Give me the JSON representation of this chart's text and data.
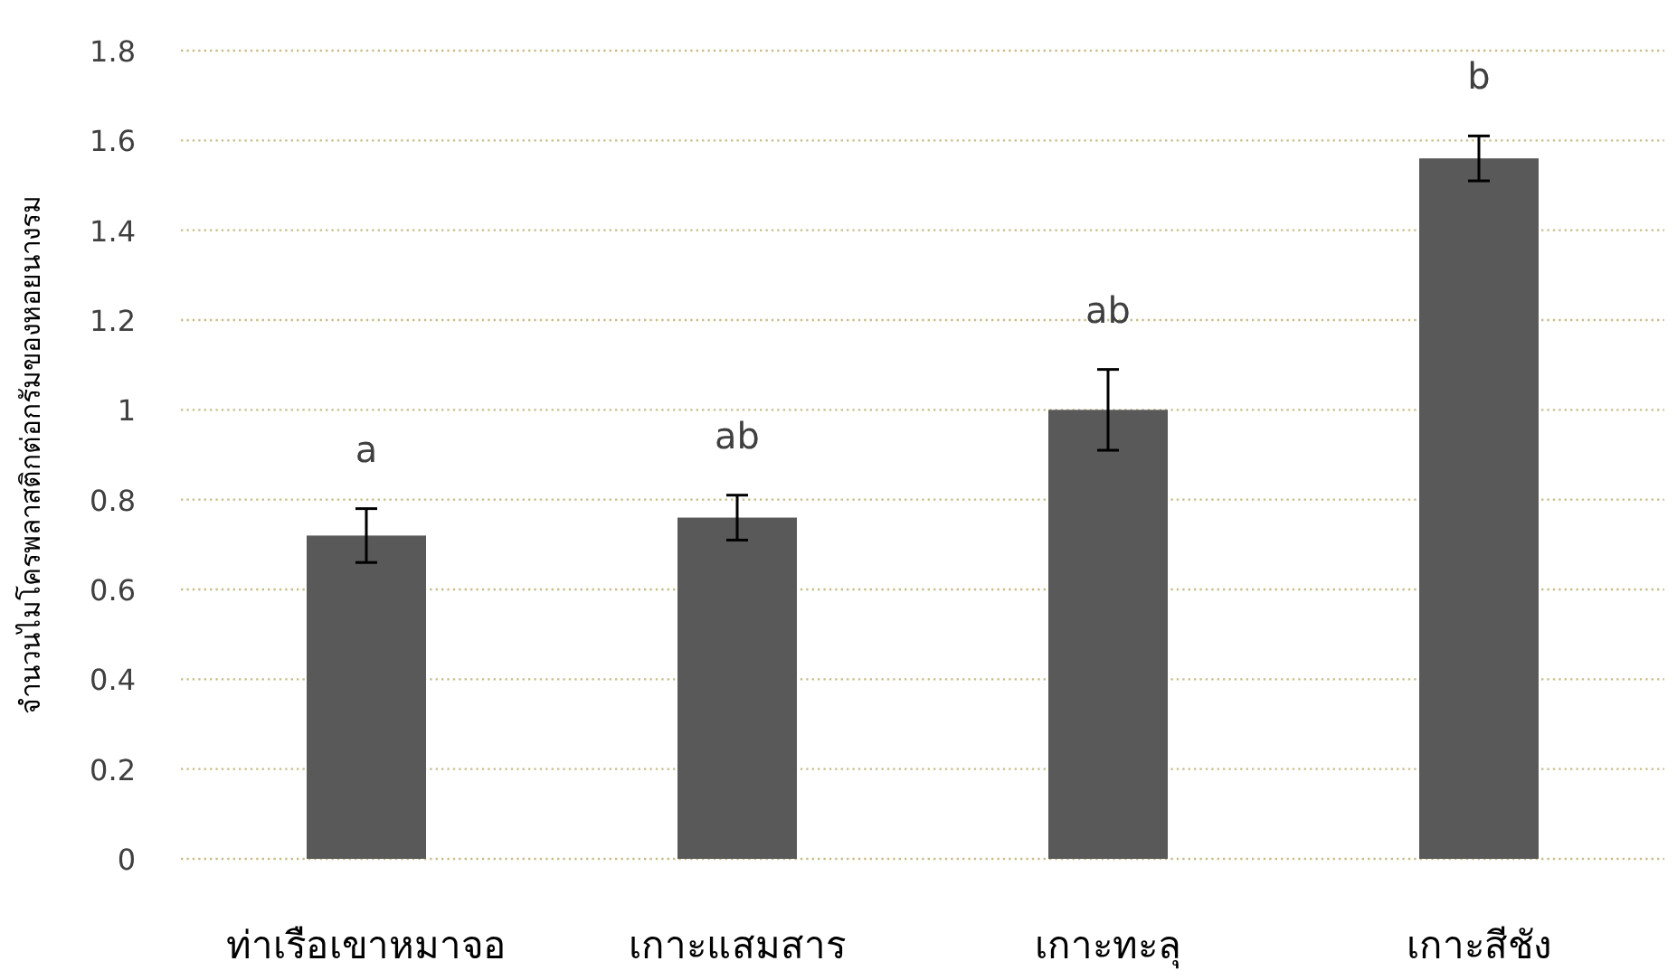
{
  "chart_data": {
    "type": "bar",
    "categories": [
      "ท่าเรือเขาหมาจอ",
      "เกาะแสมสาร",
      "เกาะทะลุ",
      "เกาะสีชัง"
    ],
    "values": [
      0.72,
      0.76,
      1.0,
      1.56
    ],
    "errors": [
      0.06,
      0.05,
      0.09,
      0.05
    ],
    "color": "#595959",
    "ylabel": "จำนวนไมโครพลาสติกต่อกรัมของหอยนางรม",
    "ylim": [
      0,
      1.8
    ],
    "yticks": [
      0,
      0.2,
      0.4,
      0.6,
      0.8,
      1,
      1.2,
      1.4,
      1.6,
      1.8
    ],
    "grid": "y",
    "annotations": [
      "a",
      "ab",
      "ab",
      "b"
    ]
  }
}
